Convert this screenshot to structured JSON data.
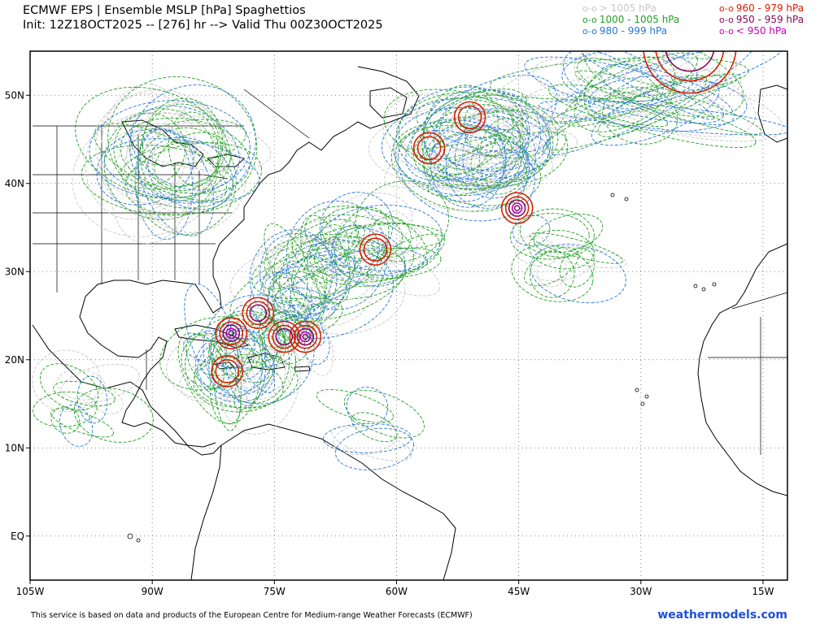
{
  "header": {
    "title": "ECMWF EPS | Ensemble MSLP [hPa] Spaghettios",
    "subtitle": "Init: 12Z18OCT2025 -- [276] hr --> Valid Thu 00Z30OCT2025"
  },
  "legend": {
    "items": [
      {
        "marker": "o-o",
        "label": "> 1005 hPa",
        "color": "#c8c8c8"
      },
      {
        "marker": "o-o",
        "label": "1000 - 1005 hPa",
        "color": "#22a022"
      },
      {
        "marker": "o-o",
        "label": "980 - 999 hPa",
        "color": "#2a78d8"
      },
      {
        "marker": "o-o",
        "label": "960 - 979 hPa",
        "color": "#d82000"
      },
      {
        "marker": "o-o",
        "label": "950 - 959 hPa",
        "color": "#8a0a5a"
      },
      {
        "marker": "o-o",
        "label": "< 950 hPa",
        "color": "#c000c0"
      }
    ]
  },
  "map": {
    "lon_range": [
      -105,
      -12
    ],
    "lat_range": [
      -5,
      55
    ],
    "x_ticks": [
      "105W",
      "90W",
      "75W",
      "60W",
      "45W",
      "30W",
      "15W"
    ],
    "y_ticks": [
      "50N",
      "40N",
      "30N",
      "20N",
      "10N",
      "EQ"
    ],
    "gridlines": true,
    "lows": [
      {
        "lon": -45.2,
        "lat": 37.2,
        "min_class": "< 950 hPa"
      },
      {
        "lon": -62.6,
        "lat": 32.5,
        "min_class": "960 - 979 hPa"
      },
      {
        "lon": -77.0,
        "lat": 25.3,
        "min_class": "950 - 959 hPa"
      },
      {
        "lon": -80.3,
        "lat": 23.0,
        "min_class": "< 950 hPa"
      },
      {
        "lon": -71.2,
        "lat": 22.6,
        "min_class": "< 950 hPa"
      },
      {
        "lon": -73.8,
        "lat": 22.6,
        "min_class": "950 - 959 hPa"
      },
      {
        "lon": -80.8,
        "lat": 18.7,
        "min_class": "960 - 979 hPa"
      },
      {
        "lon": -24.0,
        "lat": 55.5,
        "min_class": "950 - 959 hPa"
      },
      {
        "lon": -56.0,
        "lat": 44.0,
        "min_class": "960 - 979 hPa"
      },
      {
        "lon": -51.0,
        "lat": 47.5,
        "min_class": "960 - 979 hPa"
      }
    ]
  },
  "footer": {
    "disclaimer": "This service is based on data and products of the European Centre for Medium-range Weather Forecasts (ECMWF)",
    "brand": "weathermodels.com"
  }
}
